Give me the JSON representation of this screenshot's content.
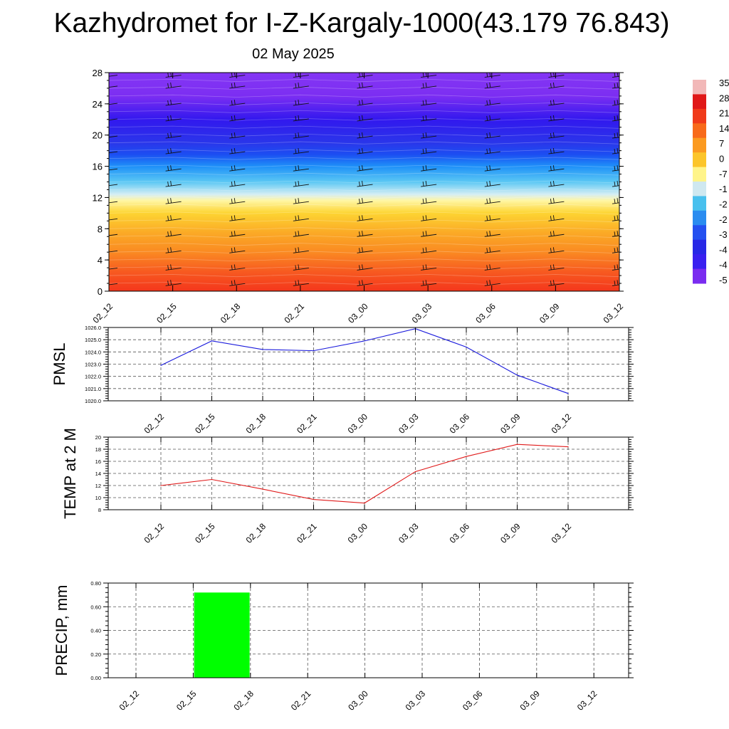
{
  "title": "Kazhydromet for I-Z-Kargaly-1000(43.179 76.843)",
  "subtitle": "02 May 2025",
  "chart_data": [
    {
      "type": "heatmap",
      "x_tick_labels": [
        "02_12",
        "02_15",
        "02_18",
        "02_21",
        "03_00",
        "03_03",
        "03_06",
        "03_09",
        "03_12"
      ],
      "y_ticks": [
        0,
        4,
        8,
        12,
        16,
        20,
        24,
        28
      ],
      "ylim": [
        0,
        28
      ],
      "colorbar_labels": [
        "35",
        "28",
        "21",
        "14",
        "7",
        "0",
        "-7",
        "-1",
        "-2",
        "-2",
        "-3",
        "-4",
        "-4",
        "-5"
      ],
      "colorbar_colors": [
        "#f2b8b8",
        "#e01818",
        "#f03a1a",
        "#f86a1a",
        "#fb9a20",
        "#fcc52a",
        "#fff48a",
        "#cfe8f0",
        "#48c0ee",
        "#2a8cf0",
        "#2450f0",
        "#2828e6",
        "#3a20f0",
        "#7a2cf0"
      ],
      "profile": [
        {
          "height": 0,
          "color": "#f4361c"
        },
        {
          "height": 2.5,
          "color": "#f75a20"
        },
        {
          "height": 5,
          "color": "#fa8a22"
        },
        {
          "height": 7.5,
          "color": "#fbaa26"
        },
        {
          "height": 10,
          "color": "#fdd432"
        },
        {
          "height": 11.6,
          "color": "#fff6a4"
        },
        {
          "height": 12.4,
          "color": "#d6eef4"
        },
        {
          "height": 14,
          "color": "#5cc8f4"
        },
        {
          "height": 16,
          "color": "#1e90f8"
        },
        {
          "height": 17.5,
          "color": "#1c4ef2"
        },
        {
          "height": 19,
          "color": "#2a36ea"
        },
        {
          "height": 22,
          "color": "#3218ee"
        },
        {
          "height": 25,
          "color": "#7c2ef2"
        },
        {
          "height": 28,
          "color": "#8436f4"
        }
      ],
      "wind_barb_levels": [
        0.7,
        2.7,
        4.9,
        7.0,
        9.0,
        11.2,
        13.4,
        15.4,
        17.6,
        19.6,
        21.8,
        23.8,
        26.0,
        27.4
      ]
    },
    {
      "type": "line",
      "ylabel": "PMSL",
      "categories": [
        "02_12",
        "02_15",
        "02_18",
        "02_21",
        "03_00",
        "03_03",
        "03_06",
        "03_09",
        "03_12"
      ],
      "y_tick_labels": [
        "1020.0",
        "1021.0",
        "1022.0",
        "1023.0",
        "1024.0",
        "1025.0",
        "1026.0"
      ],
      "ylim": [
        1020,
        1026
      ],
      "values": [
        1022.9,
        1024.9,
        1024.2,
        1024.1,
        1024.9,
        1025.9,
        1024.4,
        1022.1,
        1020.6
      ],
      "color": "#1a1adc",
      "grid": true
    },
    {
      "type": "line",
      "ylabel": "TEMP at 2 M",
      "categories": [
        "02_12",
        "02_15",
        "02_18",
        "02_21",
        "03_00",
        "03_03",
        "03_06",
        "03_09",
        "03_12"
      ],
      "y_tick_labels": [
        "8",
        "10",
        "12",
        "14",
        "16",
        "18",
        "20"
      ],
      "ylim": [
        8,
        20
      ],
      "values": [
        12.0,
        13.0,
        11.4,
        9.7,
        9.1,
        14.3,
        16.8,
        18.8,
        18.4
      ],
      "color": "#e01a1a",
      "grid": true
    },
    {
      "type": "bar",
      "ylabel": "PRECIP, mm",
      "categories": [
        "02_12",
        "02_15",
        "02_18",
        "02_21",
        "03_00",
        "03_03",
        "03_06",
        "03_09",
        "03_12"
      ],
      "y_tick_labels": [
        "0.00",
        "0.20",
        "0.40",
        "0.60",
        "0.80"
      ],
      "ylim": [
        0,
        0.8
      ],
      "values": [
        0,
        0.72,
        0,
        0,
        0,
        0,
        0,
        0,
        0
      ],
      "color": "#00ff00",
      "grid": true
    }
  ]
}
